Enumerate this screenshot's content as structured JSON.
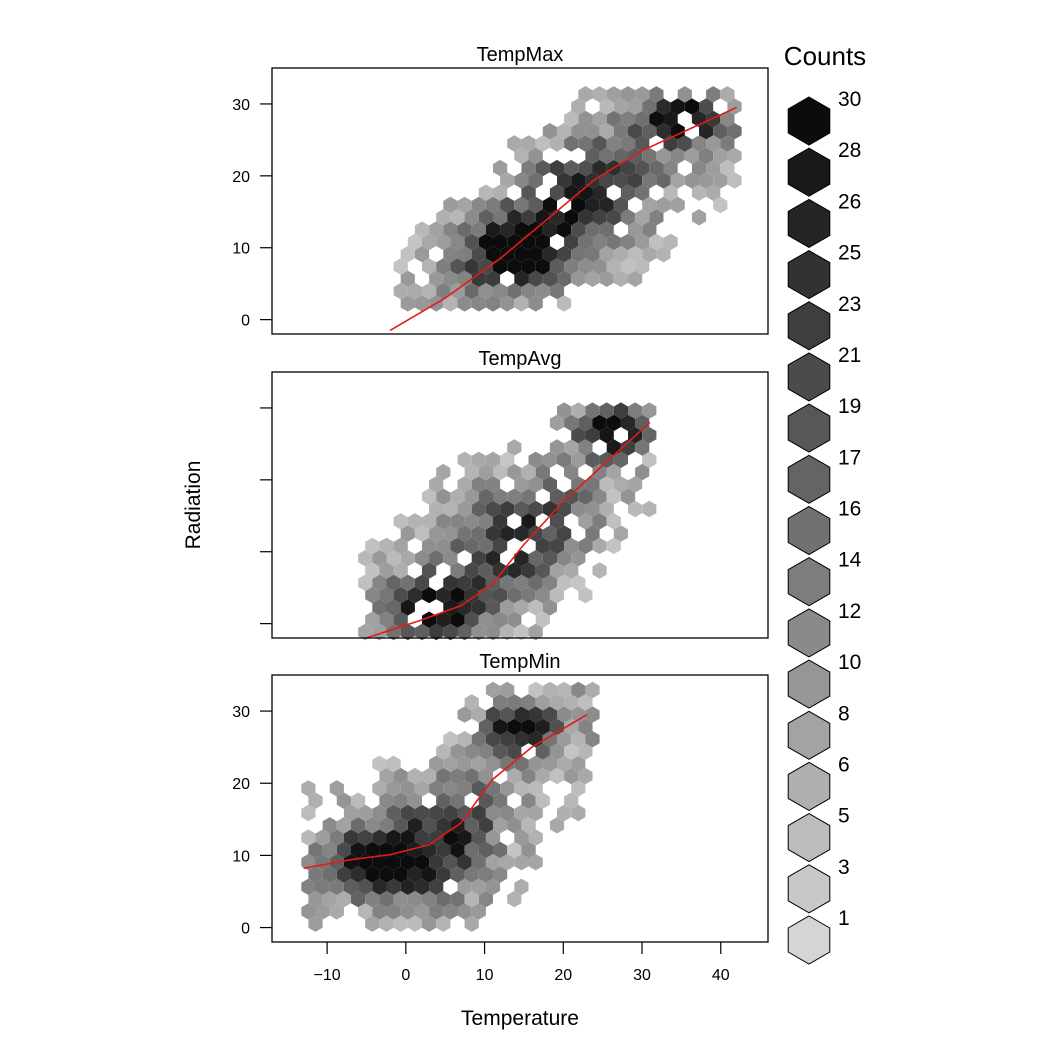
{
  "chart_data": {
    "type": "hexbin",
    "xlabel": "Temperature",
    "ylabel": "Radiation",
    "xlim": [
      -17,
      46
    ],
    "ylim": [
      -2,
      35
    ],
    "x_ticks": [
      -10,
      0,
      10,
      20,
      30,
      40
    ],
    "x_tick_labels": [
      "−10",
      "0",
      "10",
      "20",
      "30",
      "40"
    ],
    "y_ticks": [
      0,
      10,
      20,
      30
    ],
    "y_tick_labels": [
      "0",
      "10",
      "20",
      "30"
    ],
    "color_scale": {
      "low": "#d5d5d5",
      "high": "#0c0c0c"
    },
    "legend": {
      "title": "Counts",
      "labels": [
        "30",
        "28",
        "26",
        "25",
        "23",
        "21",
        "19",
        "17",
        "16",
        "14",
        "12",
        "10",
        "8",
        "6",
        "5",
        "3",
        "1"
      ]
    },
    "panels": [
      {
        "name": "TempMax",
        "show_y_tick_labels": true,
        "smooth_line": [
          [
            -2,
            -1.5
          ],
          [
            5,
            3
          ],
          [
            12,
            8.5
          ],
          [
            18,
            14
          ],
          [
            24,
            19.5
          ],
          [
            30,
            23.5
          ],
          [
            36,
            26.5
          ],
          [
            42,
            29.5
          ]
        ],
        "clusters": [
          {
            "center": [
              14,
              9
            ],
            "spread": [
              4.5,
              3.5
            ],
            "weight": 1.0
          },
          {
            "center": [
              35,
              28
            ],
            "spread": [
              4,
              2.5
            ],
            "weight": 0.95
          },
          {
            "center": [
              24,
              19
            ],
            "spread": [
              6,
              5
            ],
            "weight": 0.55
          },
          {
            "center": [
              20,
              13
            ],
            "spread": [
              8,
              6
            ],
            "weight": 0.35
          }
        ],
        "x_range": [
          -1,
          42
        ],
        "y_range": [
          1,
          32.5
        ]
      },
      {
        "name": "TempAvg",
        "show_y_tick_labels": false,
        "smooth_line": [
          [
            -5,
            -2
          ],
          [
            2,
            0.5
          ],
          [
            7,
            2.5
          ],
          [
            11,
            5.5
          ],
          [
            15,
            11
          ],
          [
            20,
            17
          ],
          [
            25,
            22
          ],
          [
            31,
            28
          ]
        ],
        "clusters": [
          {
            "center": [
              3,
              2
            ],
            "spread": [
              4,
              3
            ],
            "weight": 0.95
          },
          {
            "center": [
              26,
              27
            ],
            "spread": [
              3.5,
              2.5
            ],
            "weight": 1.0
          },
          {
            "center": [
              15,
              14
            ],
            "spread": [
              6,
              6
            ],
            "weight": 0.5
          },
          {
            "center": [
              10,
              8
            ],
            "spread": [
              8,
              7
            ],
            "weight": 0.3
          }
        ],
        "x_range": [
          -6,
          31
        ],
        "y_range": [
          -4,
          30
        ]
      },
      {
        "name": "TempMin",
        "show_y_tick_labels": true,
        "smooth_line": [
          [
            -13,
            8.2
          ],
          [
            -7,
            9.4
          ],
          [
            -2,
            10.1
          ],
          [
            3,
            11.5
          ],
          [
            7,
            14.5
          ],
          [
            11,
            20.5
          ],
          [
            16,
            25
          ],
          [
            23,
            29.5
          ]
        ],
        "clusters": [
          {
            "center": [
              -4,
              9
            ],
            "spread": [
              4,
              2.5
            ],
            "weight": 0.95
          },
          {
            "center": [
              14,
              28
            ],
            "spread": [
              3.5,
              2.5
            ],
            "weight": 1.0
          },
          {
            "center": [
              6,
              14
            ],
            "spread": [
              6,
              6
            ],
            "weight": 0.45
          },
          {
            "center": [
              2,
              8
            ],
            "spread": [
              7,
              6
            ],
            "weight": 0.4
          }
        ],
        "x_range": [
          -13,
          24
        ],
        "y_range": [
          0,
          33
        ]
      }
    ]
  }
}
